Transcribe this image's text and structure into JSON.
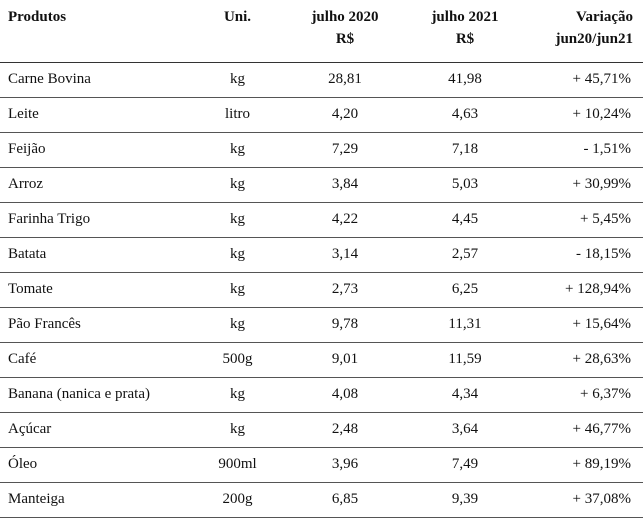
{
  "table": {
    "headers": {
      "produtos": "Produtos",
      "uni": "Uni.",
      "julho2020_line1": "julho 2020",
      "julho2020_line2": "R$",
      "julho2021_line1": "julho 2021",
      "julho2021_line2": "R$",
      "variacao_line1": "Variação",
      "variacao_line2": "jun20/jun21"
    },
    "rows": [
      {
        "produto": "Carne Bovina",
        "uni": "kg",
        "julho2020": "28,81",
        "julho2021": "41,98",
        "variacao": "+ 45,71%"
      },
      {
        "produto": "Leite",
        "uni": "litro",
        "julho2020": "4,20",
        "julho2021": "4,63",
        "variacao": "+ 10,24%"
      },
      {
        "produto": "Feijão",
        "uni": "kg",
        "julho2020": "7,29",
        "julho2021": "7,18",
        "variacao": "- 1,51%"
      },
      {
        "produto": "Arroz",
        "uni": "kg",
        "julho2020": "3,84",
        "julho2021": "5,03",
        "variacao": "+ 30,99%"
      },
      {
        "produto": "Farinha Trigo",
        "uni": "kg",
        "julho2020": "4,22",
        "julho2021": "4,45",
        "variacao": "+ 5,45%"
      },
      {
        "produto": "Batata",
        "uni": "kg",
        "julho2020": "3,14",
        "julho2021": "2,57",
        "variacao": "- 18,15%"
      },
      {
        "produto": "Tomate",
        "uni": "kg",
        "julho2020": "2,73",
        "julho2021": "6,25",
        "variacao": "+ 128,94%"
      },
      {
        "produto": "Pão Francês",
        "uni": "kg",
        "julho2020": "9,78",
        "julho2021": "11,31",
        "variacao": "+ 15,64%"
      },
      {
        "produto": "Café",
        "uni": "500g",
        "julho2020": "9,01",
        "julho2021": "11,59",
        "variacao": "+ 28,63%"
      },
      {
        "produto": "Banana (nanica e prata)",
        "uni": "kg",
        "julho2020": "4,08",
        "julho2021": "4,34",
        "variacao": "+ 6,37%"
      },
      {
        "produto": "Açúcar",
        "uni": "kg",
        "julho2020": "2,48",
        "julho2021": "3,64",
        "variacao": "+ 46,77%"
      },
      {
        "produto": "Óleo",
        "uni": "900ml",
        "julho2020": "3,96",
        "julho2021": "7,49",
        "variacao": "+ 89,19%"
      },
      {
        "produto": "Manteiga",
        "uni": "200g",
        "julho2020": "6,85",
        "julho2021": "9,39",
        "variacao": "+ 37,08%"
      }
    ]
  }
}
